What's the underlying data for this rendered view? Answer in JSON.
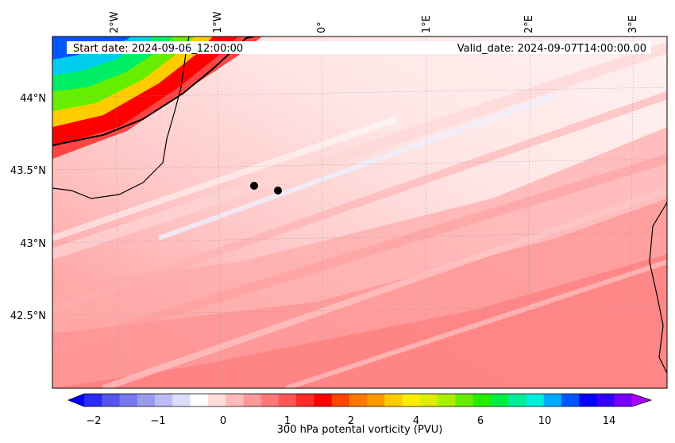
{
  "map": {
    "start_label": "Start date: 2024-09-06_12:00:00",
    "valid_label": "Valid_date: 2024-09-07T14:00:00.00",
    "lon_labels": [
      "2°W",
      "1°W",
      "0°",
      "1°E",
      "2°E",
      "3°E"
    ],
    "lat_labels": [
      "44°N",
      "43.5°N",
      "43°N",
      "42.5°N"
    ],
    "markers": [
      "point-a",
      "point-b"
    ]
  },
  "colorbar": {
    "label": "300 hPa potental vorticity (PVU)",
    "ticks": [
      "−2",
      "−1",
      "0",
      "1",
      "2",
      "4",
      "6",
      "10",
      "14"
    ],
    "colors": [
      "#0000ff",
      "#2a2af5",
      "#5555ee",
      "#7777ee",
      "#9999ee",
      "#bbbbf5",
      "#ddddfb",
      "#ffffff",
      "#ffdddd",
      "#ffbbbb",
      "#ff9999",
      "#ff7777",
      "#ff5555",
      "#ff2a2a",
      "#ff0000",
      "#ff4400",
      "#ff7700",
      "#ff9900",
      "#ffcc00",
      "#ffee00",
      "#ddee00",
      "#aaee00",
      "#66ee00",
      "#22ee00",
      "#00ee44",
      "#00ee99",
      "#00eedd",
      "#00aaff",
      "#0055ff",
      "#0000ff",
      "#3300ff",
      "#7700ff",
      "#aa00ff"
    ]
  }
}
